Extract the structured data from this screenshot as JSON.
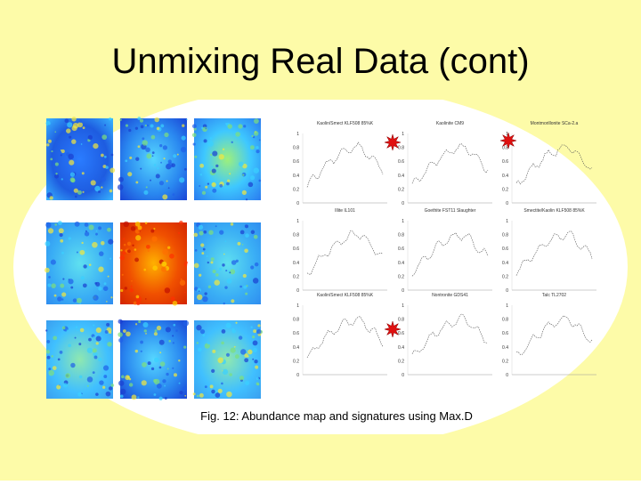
{
  "title": "Unmixing Real Data (cont)",
  "caption": "Fig. 12: Abundance map and signatures using Max.D",
  "plots": [
    {
      "title": "Kaolin/Smect KLF508 85%K"
    },
    {
      "title": "Kaolinite CM9"
    },
    {
      "title": "Montmorillonite SCa-2.a"
    },
    {
      "title": "Illite IL101"
    },
    {
      "title": "Goethite FST11 Slaughter"
    },
    {
      "title": "Smectite/Kaolin KLF508 85%K"
    },
    {
      "title": "Kaolin/Smect KLF508 85%K"
    },
    {
      "title": "Nontronite GDS41"
    },
    {
      "title": "Talc TL2702"
    }
  ],
  "axis_ticks": [
    "1",
    "0.8",
    "0.6",
    "0.4",
    "0.2",
    "0"
  ]
}
